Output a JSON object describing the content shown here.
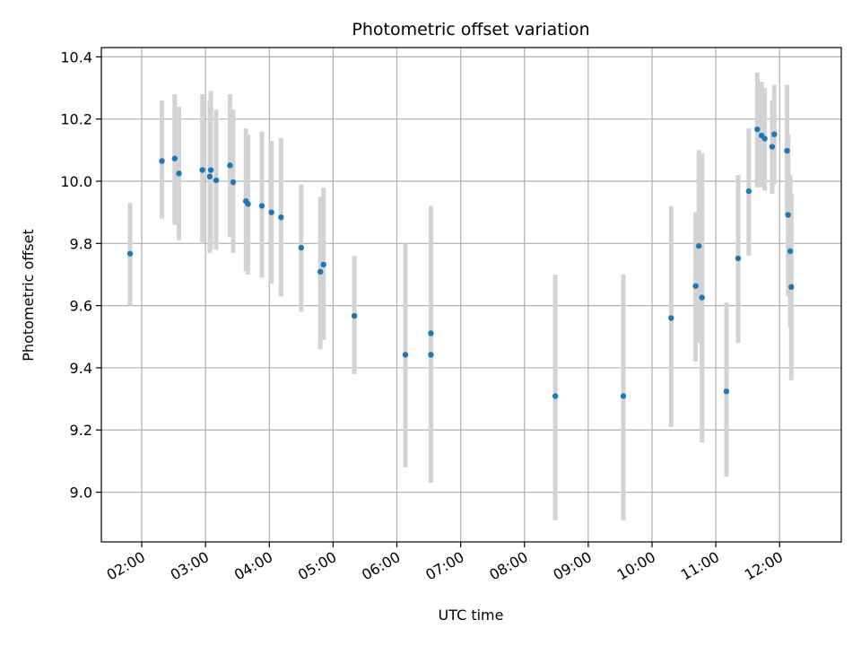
{
  "chart_data": {
    "type": "scatter",
    "title": "Photometric offset variation",
    "xlabel": "UTC time",
    "ylabel": "Photometric offset",
    "x_axis": "time (hours, UTC)",
    "xlim": [
      "01:22",
      "12:58"
    ],
    "ylim": [
      8.84,
      10.43
    ],
    "grid": true,
    "x_ticks": [
      "02:00",
      "03:00",
      "04:00",
      "05:00",
      "06:00",
      "07:00",
      "08:00",
      "09:00",
      "10:00",
      "11:00",
      "12:00"
    ],
    "y_ticks": [
      "9.0",
      "9.2",
      "9.4",
      "9.6",
      "9.8",
      "10.0",
      "10.2",
      "10.4"
    ],
    "marker_color": "#1f77b4",
    "errorbar_color": "#d3d3d3",
    "points": [
      {
        "t": "01:49",
        "y": 9.767,
        "lo": 9.6,
        "hi": 9.93
      },
      {
        "t": "02:19",
        "y": 10.065,
        "lo": 9.88,
        "hi": 10.26
      },
      {
        "t": "02:31",
        "y": 10.073,
        "lo": 9.86,
        "hi": 10.28
      },
      {
        "t": "02:35",
        "y": 10.025,
        "lo": 9.81,
        "hi": 10.24
      },
      {
        "t": "02:57",
        "y": 10.036,
        "lo": 9.8,
        "hi": 10.28
      },
      {
        "t": "03:04",
        "y": 10.015,
        "lo": 9.77,
        "hi": 10.26
      },
      {
        "t": "03:05",
        "y": 10.036,
        "lo": 9.78,
        "hi": 10.29
      },
      {
        "t": "03:10",
        "y": 10.003,
        "lo": 9.78,
        "hi": 10.23
      },
      {
        "t": "03:23",
        "y": 10.051,
        "lo": 9.82,
        "hi": 10.28
      },
      {
        "t": "03:26",
        "y": 9.997,
        "lo": 9.77,
        "hi": 10.23
      },
      {
        "t": "03:38",
        "y": 9.936,
        "lo": 9.71,
        "hi": 10.17
      },
      {
        "t": "03:40",
        "y": 9.927,
        "lo": 9.7,
        "hi": 10.15
      },
      {
        "t": "03:53",
        "y": 9.921,
        "lo": 9.69,
        "hi": 10.16
      },
      {
        "t": "04:02",
        "y": 9.9,
        "lo": 9.67,
        "hi": 10.13
      },
      {
        "t": "04:11",
        "y": 9.884,
        "lo": 9.63,
        "hi": 10.14
      },
      {
        "t": "04:30",
        "y": 9.786,
        "lo": 9.58,
        "hi": 9.99
      },
      {
        "t": "04:48",
        "y": 9.709,
        "lo": 9.46,
        "hi": 9.95
      },
      {
        "t": "04:51",
        "y": 9.732,
        "lo": 9.49,
        "hi": 9.98
      },
      {
        "t": "05:20",
        "y": 9.567,
        "lo": 9.38,
        "hi": 9.76
      },
      {
        "t": "06:08",
        "y": 9.442,
        "lo": 9.08,
        "hi": 9.8
      },
      {
        "t": "06:32",
        "y": 9.442,
        "lo": 9.03,
        "hi": 9.92
      },
      {
        "t": "06:32",
        "y": 9.511,
        "lo": 9.03,
        "hi": 9.92
      },
      {
        "t": "08:29",
        "y": 9.309,
        "lo": 8.91,
        "hi": 9.7
      },
      {
        "t": "09:33",
        "y": 9.309,
        "lo": 8.91,
        "hi": 9.7
      },
      {
        "t": "10:18",
        "y": 9.56,
        "lo": 9.21,
        "hi": 9.92
      },
      {
        "t": "10:41",
        "y": 9.663,
        "lo": 9.42,
        "hi": 9.9
      },
      {
        "t": "10:44",
        "y": 9.792,
        "lo": 9.48,
        "hi": 10.1
      },
      {
        "t": "10:47",
        "y": 9.626,
        "lo": 9.16,
        "hi": 10.09
      },
      {
        "t": "11:10",
        "y": 9.324,
        "lo": 9.05,
        "hi": 9.61
      },
      {
        "t": "11:21",
        "y": 9.752,
        "lo": 9.48,
        "hi": 10.02
      },
      {
        "t": "11:31",
        "y": 9.968,
        "lo": 9.76,
        "hi": 10.17
      },
      {
        "t": "11:39",
        "y": 10.167,
        "lo": 9.98,
        "hi": 10.35
      },
      {
        "t": "11:43",
        "y": 10.147,
        "lo": 9.98,
        "hi": 10.32
      },
      {
        "t": "11:46",
        "y": 10.137,
        "lo": 9.97,
        "hi": 10.3
      },
      {
        "t": "11:53",
        "y": 10.111,
        "lo": 9.96,
        "hi": 10.26
      },
      {
        "t": "11:55",
        "y": 10.151,
        "lo": 9.99,
        "hi": 10.31
      },
      {
        "t": "12:07",
        "y": 10.098,
        "lo": 9.89,
        "hi": 10.31
      },
      {
        "t": "12:08",
        "y": 9.892,
        "lo": 9.63,
        "hi": 10.15
      },
      {
        "t": "12:10",
        "y": 9.775,
        "lo": 9.53,
        "hi": 10.02
      },
      {
        "t": "12:11",
        "y": 9.66,
        "lo": 9.36,
        "hi": 9.96
      }
    ]
  }
}
